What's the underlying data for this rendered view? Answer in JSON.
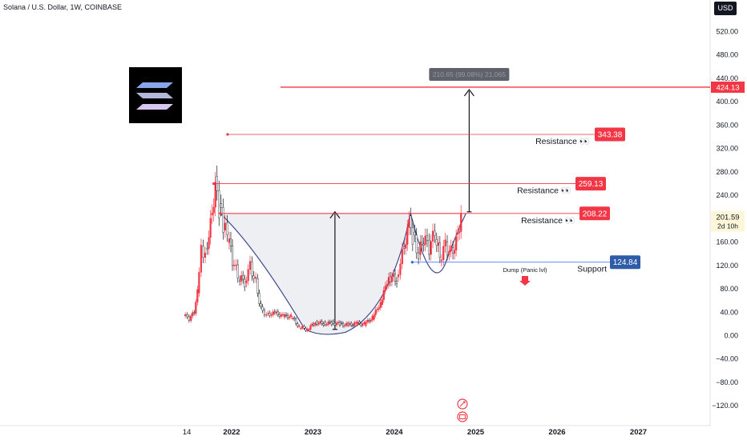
{
  "header": {
    "symbol_title": "Solana / U.S. Dollar, 1W, COINBASE",
    "currency_button": "USD"
  },
  "chart_data": {
    "type": "line",
    "yaxis": {
      "ticks": [
        520,
        480,
        440,
        400,
        360,
        320,
        280,
        240,
        200,
        160,
        120,
        80,
        40,
        0,
        -40,
        -80,
        -120
      ],
      "tick_labels": [
        "520.00",
        "480.00",
        "440.00",
        "400.00",
        "360.00",
        "320.00",
        "280.00",
        "240.00",
        "200.00",
        "160.00",
        "120.00",
        "80.00",
        "40.00",
        "0.00",
        "−40.00",
        "−80.00",
        "−120.00"
      ],
      "range": [
        -140,
        545
      ]
    },
    "xaxis": {
      "labels": [
        {
          "text": "14",
          "year": 2021.45
        },
        {
          "text": "2022",
          "year": 2022.0
        },
        {
          "text": "2023",
          "year": 2023.0
        },
        {
          "text": "2024",
          "year": 2024.0
        },
        {
          "text": "2025",
          "year": 2025.0
        },
        {
          "text": "2026",
          "year": 2026.0
        },
        {
          "text": "2027",
          "year": 2027.0
        }
      ],
      "range": [
        2021.2,
        2028.4
      ]
    },
    "price_series": [
      {
        "date": 2021.43,
        "value": 35
      },
      {
        "date": 2021.5,
        "value": 28
      },
      {
        "date": 2021.56,
        "value": 40
      },
      {
        "date": 2021.6,
        "value": 75
      },
      {
        "date": 2021.65,
        "value": 150
      },
      {
        "date": 2021.7,
        "value": 140
      },
      {
        "date": 2021.76,
        "value": 190
      },
      {
        "date": 2021.82,
        "value": 255
      },
      {
        "date": 2021.87,
        "value": 220
      },
      {
        "date": 2021.92,
        "value": 185
      },
      {
        "date": 2021.97,
        "value": 170
      },
      {
        "date": 2022.03,
        "value": 130
      },
      {
        "date": 2022.1,
        "value": 100
      },
      {
        "date": 2022.18,
        "value": 90
      },
      {
        "date": 2022.25,
        "value": 120
      },
      {
        "date": 2022.32,
        "value": 90
      },
      {
        "date": 2022.38,
        "value": 45
      },
      {
        "date": 2022.45,
        "value": 35
      },
      {
        "date": 2022.55,
        "value": 38
      },
      {
        "date": 2022.65,
        "value": 33
      },
      {
        "date": 2022.75,
        "value": 32
      },
      {
        "date": 2022.85,
        "value": 14
      },
      {
        "date": 2022.95,
        "value": 10
      },
      {
        "date": 2023.05,
        "value": 22
      },
      {
        "date": 2023.15,
        "value": 20
      },
      {
        "date": 2023.25,
        "value": 21
      },
      {
        "date": 2023.35,
        "value": 19
      },
      {
        "date": 2023.45,
        "value": 17
      },
      {
        "date": 2023.55,
        "value": 20
      },
      {
        "date": 2023.65,
        "value": 19
      },
      {
        "date": 2023.75,
        "value": 30
      },
      {
        "date": 2023.85,
        "value": 55
      },
      {
        "date": 2023.95,
        "value": 100
      },
      {
        "date": 2024.05,
        "value": 95
      },
      {
        "date": 2024.12,
        "value": 140
      },
      {
        "date": 2024.2,
        "value": 190
      },
      {
        "date": 2024.25,
        "value": 170
      },
      {
        "date": 2024.32,
        "value": 140
      },
      {
        "date": 2024.38,
        "value": 165
      },
      {
        "date": 2024.45,
        "value": 150
      },
      {
        "date": 2024.52,
        "value": 175
      },
      {
        "date": 2024.58,
        "value": 130
      },
      {
        "date": 2024.65,
        "value": 155
      },
      {
        "date": 2024.72,
        "value": 140
      },
      {
        "date": 2024.78,
        "value": 160
      },
      {
        "date": 2024.84,
        "value": 205
      }
    ],
    "current_price": {
      "label": "201.59",
      "countdown": "2d 10h",
      "value": 201.59
    },
    "levels": [
      {
        "name": "Resistance",
        "value": 343.38,
        "label": "343.38",
        "start": 2021.95,
        "color": "#f23645"
      },
      {
        "name": "Resistance",
        "value": 259.13,
        "label": "259.13",
        "start": 2021.78,
        "color": "#f23645"
      },
      {
        "name": "Resistance",
        "value": 208.22,
        "label": "208.22",
        "start": 2021.86,
        "color": "#f23645"
      },
      {
        "name": "Support",
        "value": 124.84,
        "label": "124.84",
        "start": 2024.22,
        "color": "#2962ff"
      }
    ],
    "target": {
      "value": 424.13,
      "label": "424.13",
      "start": 2022.6
    },
    "measure_label": "210.65 (99.08%) 21,065",
    "annotations": {
      "resistance_text": "Resistance 👀",
      "support_text": "Support",
      "dump_text": "Dump (Panic lvl)"
    },
    "colors": {
      "up": "#f23645",
      "accent_blue": "#2962ff",
      "pattern": "#3f4a8a",
      "text": "#131722"
    }
  }
}
